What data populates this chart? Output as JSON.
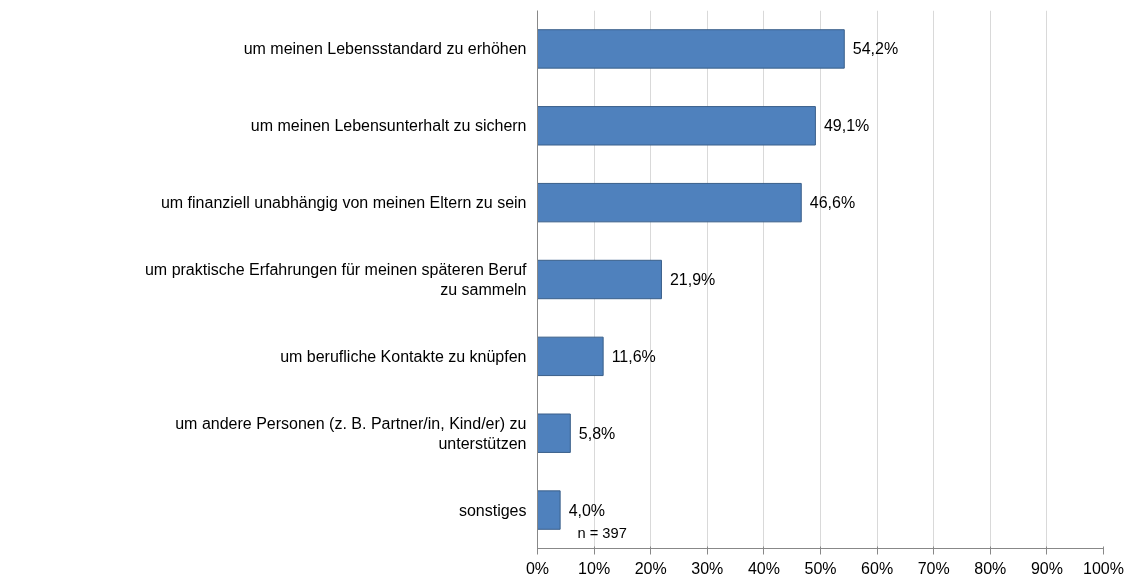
{
  "chart_data": {
    "type": "bar",
    "orientation": "horizontal",
    "categories": [
      "um meinen Lebensstandard zu erhöhen",
      "um meinen Lebensunterhalt zu sichern",
      "um finanziell unabhängig von meinen Eltern zu sein",
      "um praktische Erfahrungen für meinen späteren Beruf\nzu sammeln",
      "um berufliche Kontakte zu knüpfen",
      "um andere Personen (z. B. Partner/in, Kind/er) zu\nunterstützen",
      "sonstiges"
    ],
    "values": [
      54.2,
      49.1,
      46.6,
      21.9,
      11.6,
      5.8,
      4.0
    ],
    "value_labels": [
      "54,2%",
      "49,1%",
      "46,6%",
      "21,9%",
      "11,6%",
      "5,8%",
      "4,0%"
    ],
    "color": "#4f81bd",
    "xlim": [
      0,
      100
    ],
    "xticks": [
      {
        "value": 0,
        "label": "0%"
      },
      {
        "value": 10,
        "label": "10%"
      },
      {
        "value": 20,
        "label": "20%"
      },
      {
        "value": 30,
        "label": "30%"
      },
      {
        "value": 40,
        "label": "40%"
      },
      {
        "value": 50,
        "label": "50%"
      },
      {
        "value": 60,
        "label": "60%"
      },
      {
        "value": 70,
        "label": "70%"
      },
      {
        "value": 80,
        "label": "80%"
      },
      {
        "value": 90,
        "label": "90%"
      },
      {
        "value": 100,
        "label": "100%"
      }
    ],
    "grid": "x",
    "annotations": [
      "n = 397"
    ]
  }
}
